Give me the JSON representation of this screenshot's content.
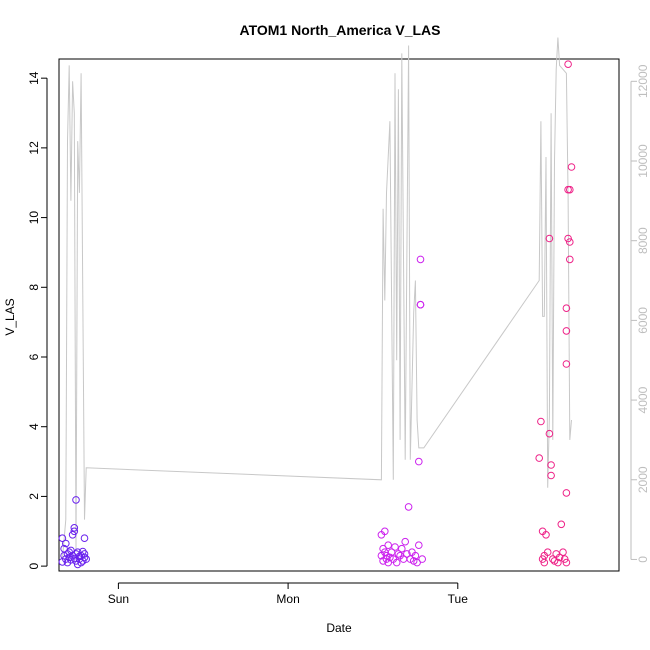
{
  "chart_data": {
    "type": "scatter",
    "title": "ATOM1 North_America V_LAS",
    "xlabel": "Date",
    "ylabel": "V_LAS",
    "x_ticks": [
      "Sun",
      "Mon",
      "Tue"
    ],
    "xlim": [
      -0.35,
      2.95
    ],
    "ylim": [
      -0.14,
      14.55
    ],
    "y_ticks": [
      0,
      2,
      4,
      6,
      8,
      10,
      12,
      14
    ],
    "y2lim": [
      -290,
      12560
    ],
    "y2_ticks": [
      0,
      2000,
      4000,
      6000,
      8000,
      10000,
      12000
    ],
    "colors": {
      "line": "#c8c8c8",
      "right_axis": "#bebebe",
      "frame": "#000000"
    },
    "scatter_groups": [
      {
        "color": "#6a22ee",
        "points": [
          [
            -0.33,
            0.12
          ],
          [
            -0.33,
            0.8
          ],
          [
            -0.32,
            0.5
          ],
          [
            -0.32,
            0.3
          ],
          [
            -0.31,
            0.2
          ],
          [
            -0.31,
            0.65
          ],
          [
            -0.3,
            0.35
          ],
          [
            -0.3,
            0.1
          ],
          [
            -0.29,
            0.4
          ],
          [
            -0.29,
            0.25
          ],
          [
            -0.28,
            0.18
          ],
          [
            -0.28,
            0.45
          ],
          [
            -0.27,
            0.9
          ],
          [
            -0.27,
            0.3
          ],
          [
            -0.26,
            0.22
          ],
          [
            -0.26,
            1.0
          ],
          [
            -0.26,
            1.1
          ],
          [
            -0.25,
            0.15
          ],
          [
            -0.25,
            1.9
          ],
          [
            -0.25,
            0.35
          ],
          [
            -0.24,
            0.05
          ],
          [
            -0.24,
            0.4
          ],
          [
            -0.23,
            0.2
          ],
          [
            -0.23,
            0.28
          ],
          [
            -0.22,
            0.1
          ],
          [
            -0.22,
            0.3
          ],
          [
            -0.21,
            0.42
          ],
          [
            -0.21,
            0.15
          ],
          [
            -0.2,
            0.25
          ],
          [
            -0.2,
            0.8
          ],
          [
            -0.2,
            0.35
          ],
          [
            -0.19,
            0.2
          ]
        ]
      },
      {
        "color": "#cc22ee",
        "points": [
          [
            1.55,
            0.3
          ],
          [
            1.55,
            0.9
          ],
          [
            1.56,
            0.5
          ],
          [
            1.56,
            0.15
          ],
          [
            1.57,
            1.0
          ],
          [
            1.57,
            0.4
          ],
          [
            1.58,
            0.2
          ],
          [
            1.58,
            0.3
          ],
          [
            1.59,
            0.6
          ],
          [
            1.59,
            0.1
          ],
          [
            1.6,
            0.25
          ],
          [
            1.61,
            0.4
          ],
          [
            1.62,
            0.2
          ],
          [
            1.63,
            0.55
          ],
          [
            1.64,
            0.1
          ],
          [
            1.65,
            0.35
          ],
          [
            1.66,
            0.3
          ],
          [
            1.67,
            0.5
          ],
          [
            1.68,
            0.2
          ],
          [
            1.69,
            0.7
          ],
          [
            1.7,
            0.35
          ],
          [
            1.71,
            1.7
          ],
          [
            1.72,
            0.2
          ],
          [
            1.73,
            0.4
          ],
          [
            1.74,
            0.15
          ],
          [
            1.75,
            0.3
          ],
          [
            1.76,
            0.1
          ],
          [
            1.77,
            0.6
          ],
          [
            1.77,
            3.0
          ],
          [
            1.78,
            7.5
          ],
          [
            1.78,
            7.5
          ],
          [
            1.78,
            8.8
          ],
          [
            1.79,
            0.2
          ]
        ]
      },
      {
        "color": "#ee2288",
        "points": [
          [
            2.48,
            3.1
          ],
          [
            2.49,
            4.15
          ],
          [
            2.5,
            1.0
          ],
          [
            2.5,
            0.2
          ],
          [
            2.51,
            0.3
          ],
          [
            2.51,
            0.1
          ],
          [
            2.52,
            0.9
          ],
          [
            2.53,
            0.4
          ],
          [
            2.54,
            3.8
          ],
          [
            2.54,
            9.4
          ],
          [
            2.55,
            2.9
          ],
          [
            2.55,
            2.6
          ],
          [
            2.56,
            0.2
          ],
          [
            2.57,
            0.15
          ],
          [
            2.58,
            0.35
          ],
          [
            2.59,
            0.1
          ],
          [
            2.6,
            0.25
          ],
          [
            2.61,
            1.2
          ],
          [
            2.62,
            0.4
          ],
          [
            2.63,
            0.2
          ],
          [
            2.64,
            0.1
          ],
          [
            2.64,
            2.1
          ],
          [
            2.64,
            5.8
          ],
          [
            2.64,
            6.75
          ],
          [
            2.64,
            7.4
          ],
          [
            2.65,
            9.4
          ],
          [
            2.65,
            10.8
          ],
          [
            2.65,
            14.4
          ],
          [
            2.66,
            8.8
          ],
          [
            2.66,
            9.3
          ],
          [
            2.66,
            10.8
          ],
          [
            2.67,
            11.45
          ]
        ]
      }
    ],
    "secondary_line": {
      "axis": "right",
      "points": [
        [
          -0.33,
          0
        ],
        [
          -0.31,
          1000
        ],
        [
          -0.3,
          10500
        ],
        [
          -0.29,
          12400
        ],
        [
          -0.28,
          9000
        ],
        [
          -0.27,
          12000
        ],
        [
          -0.26,
          11200
        ],
        [
          -0.25,
          200
        ],
        [
          -0.24,
          10500
        ],
        [
          -0.23,
          9200
        ],
        [
          -0.22,
          12200
        ],
        [
          -0.2,
          1000
        ],
        [
          -0.19,
          2300
        ],
        [
          1.55,
          2000
        ],
        [
          1.56,
          8800
        ],
        [
          1.57,
          6500
        ],
        [
          1.58,
          9200
        ],
        [
          1.6,
          11000
        ],
        [
          1.62,
          2000
        ],
        [
          1.63,
          12200
        ],
        [
          1.64,
          5000
        ],
        [
          1.65,
          11800
        ],
        [
          1.66,
          3000
        ],
        [
          1.67,
          12700
        ],
        [
          1.69,
          2500
        ],
        [
          1.71,
          12900
        ],
        [
          1.72,
          2500
        ],
        [
          1.74,
          6200
        ],
        [
          1.75,
          7000
        ],
        [
          1.76,
          3500
        ],
        [
          1.77,
          2800
        ],
        [
          1.8,
          2800
        ],
        [
          2.48,
          7000
        ],
        [
          2.49,
          11000
        ],
        [
          2.5,
          6100
        ],
        [
          2.51,
          6100
        ],
        [
          2.52,
          10100
        ],
        [
          2.53,
          1800
        ],
        [
          2.54,
          3600
        ],
        [
          2.55,
          11200
        ],
        [
          2.56,
          3000
        ],
        [
          2.57,
          10000
        ],
        [
          2.58,
          12300
        ],
        [
          2.59,
          13100
        ],
        [
          2.6,
          12400
        ],
        [
          2.64,
          12200
        ],
        [
          2.65,
          9100
        ],
        [
          2.66,
          3000
        ],
        [
          2.67,
          3500
        ]
      ]
    }
  }
}
